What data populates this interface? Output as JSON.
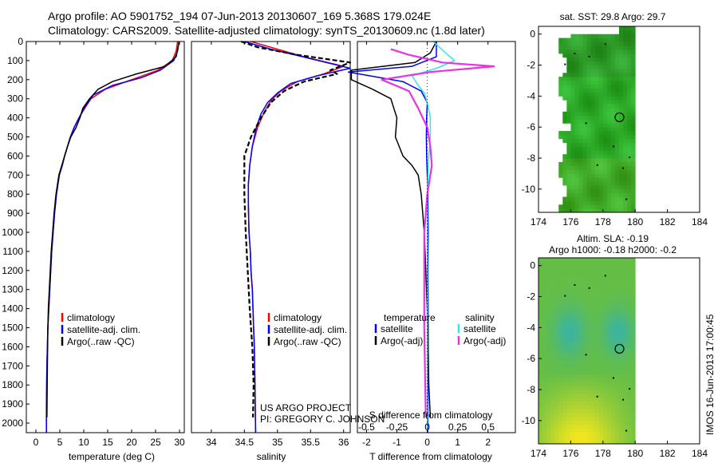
{
  "header": {
    "line1": "Argo profile: AO 5901752_194 07-Jun-2013 20130607_169 5.368S 179.024E",
    "line2": "Climatology: CARS2009. Satellite-adjusted climatology: synTS_20130609.nc (1.8d later)"
  },
  "colors": {
    "climatology": "#ff0000",
    "satellite": "#0000ff",
    "argo": "#000000",
    "sal_sat": "#33e5f0",
    "sal_argo": "#e533e5"
  },
  "chart_data": [
    {
      "type": "line",
      "id": "temperature",
      "xlabel": "temperature (deg C)",
      "ylabel": "",
      "xlim": [
        -2,
        31
      ],
      "ylim": [
        2050,
        0
      ],
      "xticks": [
        0,
        5,
        10,
        15,
        20,
        25,
        30
      ],
      "xtick_labels": [
        "0",
        "5",
        "10",
        "15",
        "20",
        "25",
        "30"
      ],
      "yticks": [
        0,
        100,
        200,
        300,
        400,
        500,
        600,
        700,
        800,
        900,
        1000,
        1100,
        1200,
        1300,
        1400,
        1500,
        1600,
        1700,
        1800,
        1900,
        2000
      ],
      "ytick_labels": [
        "0",
        "100",
        "200",
        "300",
        "400",
        "500",
        "600",
        "700",
        "800",
        "900",
        "1000",
        "1100",
        "1200",
        "1300",
        "1400",
        "1500",
        "1600",
        "1700",
        "1800",
        "1900",
        "2000"
      ],
      "legend": [
        "climatology",
        "satellite-adj. clim.",
        "Argo(..raw -QC)"
      ],
      "series": [
        {
          "name": "climatology",
          "color": "#ff0000",
          "width": 1.5,
          "x": [
            29.6,
            29.3,
            28.5,
            25.5,
            20,
            14.5,
            11.5,
            10.2,
            9,
            8,
            7.2,
            6.6,
            6,
            5.5,
            4.9,
            4.3,
            3.9,
            3.6,
            3.3,
            3.1,
            2.9,
            2.7,
            2.5,
            2.4,
            2.3,
            2.2,
            2.2
          ],
          "y": [
            0,
            50,
            100,
            150,
            200,
            250,
            300,
            350,
            400,
            450,
            500,
            550,
            600,
            650,
            700,
            800,
            900,
            1000,
            1100,
            1200,
            1300,
            1400,
            1500,
            1600,
            1700,
            1900,
            2050
          ]
        },
        {
          "name": "satellite-adj. clim.",
          "color": "#0000ff",
          "width": 1.5,
          "x": [
            29.9,
            29.6,
            28.8,
            26,
            22,
            16,
            12,
            10.3,
            9,
            8,
            7.2,
            6.6,
            6,
            5.5,
            4.9,
            4.3,
            3.9,
            3.6,
            3.3,
            3.1,
            2.9,
            2.7,
            2.5,
            2.4,
            2.3,
            2.2,
            2.2
          ],
          "y": [
            0,
            50,
            100,
            150,
            190,
            230,
            280,
            340,
            400,
            450,
            500,
            550,
            600,
            650,
            700,
            800,
            900,
            1000,
            1100,
            1200,
            1300,
            1400,
            1500,
            1600,
            1700,
            1900,
            2050
          ]
        },
        {
          "name": "Argo(..raw -QC)",
          "color": "#000000",
          "width": 1.5,
          "x": [
            29.9,
            29.7,
            29.3,
            27,
            21,
            16,
            13,
            11.2,
            9.8,
            9.2,
            8.4,
            7.3,
            6.6,
            6,
            5.4,
            4.8,
            4.2,
            3.8,
            3.5,
            3.2,
            3.0,
            2.8,
            2.6,
            2.5,
            2.4,
            2.3
          ],
          "y": [
            0,
            30,
            80,
            130,
            170,
            210,
            250,
            300,
            350,
            400,
            450,
            500,
            550,
            600,
            650,
            700,
            800,
            900,
            1000,
            1100,
            1200,
            1300,
            1400,
            1500,
            1700,
            1970
          ]
        }
      ]
    },
    {
      "type": "line",
      "id": "salinity",
      "xlabel": "salinity",
      "xlim": [
        33.7,
        36.1
      ],
      "ylim": [
        2050,
        0
      ],
      "xticks": [
        34,
        34.5,
        35,
        35.5,
        36
      ],
      "xtick_labels": [
        "34",
        "34.5",
        "35",
        "35.5",
        "36"
      ],
      "legend": [
        "climatology",
        "satellite-adj. clim.",
        "Argo(..raw -QC)"
      ],
      "series": [
        {
          "name": "climatology",
          "color": "#ff0000",
          "width": 1.5,
          "x": [
            34.6,
            35.0,
            35.4,
            36.0,
            35.7,
            35.3,
            35.05,
            34.9,
            34.8,
            34.7,
            34.62,
            34.58,
            34.56,
            34.56,
            34.57,
            34.59,
            34.6,
            34.62,
            34.63,
            34.64,
            34.65,
            34.66,
            34.67
          ],
          "y": [
            0,
            40,
            80,
            130,
            170,
            210,
            260,
            310,
            370,
            450,
            550,
            650,
            750,
            850,
            1000,
            1100,
            1200,
            1300,
            1400,
            1500,
            1600,
            1800,
            2050
          ]
        },
        {
          "name": "satellite-adj. clim.",
          "color": "#0000ff",
          "width": 1.5,
          "x": [
            34.5,
            34.9,
            35.5,
            36.1,
            35.6,
            35.2,
            35.0,
            34.85,
            34.75,
            34.68,
            34.62,
            34.58,
            34.56,
            34.56,
            34.57,
            34.59,
            34.6,
            34.62,
            34.63,
            34.64,
            34.65,
            34.66,
            34.67
          ],
          "y": [
            0,
            40,
            90,
            140,
            180,
            220,
            270,
            320,
            380,
            450,
            550,
            650,
            750,
            850,
            1000,
            1100,
            1200,
            1300,
            1400,
            1500,
            1600,
            1800,
            2050
          ]
        },
        {
          "name": "Argo(..raw -QC)",
          "color": "#000000",
          "width": 2.2,
          "dash": "6,3",
          "x": [
            34.45,
            34.7,
            35.3,
            36.1,
            35.8,
            35.9,
            35.4,
            35.1,
            34.9,
            34.75,
            34.6,
            34.5,
            34.5,
            34.5,
            34.52,
            34.55,
            34.58,
            34.6,
            34.62,
            34.63,
            34.64,
            34.63
          ],
          "y": [
            0,
            30,
            70,
            110,
            150,
            170,
            210,
            260,
            320,
            400,
            500,
            600,
            700,
            800,
            1000,
            1200,
            1400,
            1500,
            1600,
            1700,
            1800,
            1970
          ]
        }
      ]
    },
    {
      "type": "line",
      "id": "difference",
      "xlabel": "T difference from climatology",
      "xlabel_top": "S difference from climatology",
      "xlim": [
        -2.3,
        2.9
      ],
      "ylim": [
        2050,
        0
      ],
      "xticks": [
        -2,
        -1,
        0,
        1,
        2
      ],
      "xtick_labels": [
        "-2",
        "-1",
        "0",
        "1",
        "2"
      ],
      "top_ticks": [
        -0.5,
        -0.25,
        0,
        0.25,
        0.5
      ],
      "top_tick_labels": [
        "-0.5",
        "-0.25",
        "0",
        "0.25",
        "0.5"
      ],
      "legend_temperature": [
        "temperature",
        "satellite",
        "Argo(-adj)"
      ],
      "legend_salinity": [
        "salinity",
        "satellite",
        "Argo(-adj)"
      ],
      "series": [
        {
          "name": "temperature satellite",
          "color": "#0000ff",
          "width": 1.5,
          "x": [
            0.3,
            0.3,
            -0.5,
            -2.6,
            -0.8,
            -0.2,
            0,
            -0.02,
            -0.03,
            -0.02,
            0,
            0.02,
            0.03,
            0.02,
            0.03,
            0.02,
            0.02
          ],
          "y": [
            0,
            80,
            130,
            160,
            210,
            260,
            320,
            400,
            500,
            600,
            700,
            800,
            1000,
            1200,
            1500,
            1800,
            2050
          ]
        },
        {
          "name": "temperature Argo",
          "color": "#000000",
          "width": 1.5,
          "x": [
            0.3,
            0.1,
            -0.4,
            -2.5,
            -2.5,
            -1.8,
            -1.2,
            -1.1,
            -1.0,
            -1.05,
            -0.8,
            -0.5,
            -0.3,
            -0.2,
            -0.15,
            -0.1,
            -0.05,
            0.02,
            0.05,
            0.1
          ],
          "y": [
            0,
            60,
            110,
            150,
            200,
            250,
            300,
            350,
            400,
            500,
            600,
            650,
            700,
            800,
            900,
            1000,
            1200,
            1500,
            1800,
            1970
          ]
        },
        {
          "name": "salinity satellite",
          "color": "#33e5f0",
          "width": 1.5,
          "x": [
            0.2,
            0.6,
            0.9,
            0.3,
            -0.5,
            -0.3,
            -0.1,
            0.0,
            0.1,
            0.1,
            0.05,
            0.0,
            0.0,
            0.0,
            0.0
          ],
          "y": [
            0,
            60,
            100,
            140,
            180,
            230,
            270,
            320,
            400,
            500,
            600,
            800,
            1200,
            1600,
            2050
          ]
        },
        {
          "name": "salinity Argo",
          "color": "#e533e5",
          "width": 2.2,
          "x": [
            -1.2,
            -0.6,
            0.5,
            2.2,
            0.1,
            -1.5,
            -0.6,
            -0.3,
            0.0,
            0.1,
            0.15,
            0.0,
            -0.1,
            -0.1,
            -0.05
          ],
          "y": [
            40,
            70,
            110,
            130,
            160,
            200,
            260,
            350,
            450,
            550,
            650,
            800,
            1000,
            1500,
            1970
          ]
        }
      ]
    },
    {
      "type": "heatmap",
      "id": "sst_map",
      "title": "sat. SST: 29.8 Argo: 29.7",
      "xlim": [
        174,
        184
      ],
      "ylim": [
        -11.5,
        0.5
      ],
      "xticks": [
        174,
        176,
        178,
        180,
        182,
        184
      ],
      "xtick_labels": [
        "174",
        "176",
        "178",
        "180",
        "182",
        "184"
      ],
      "yticks": [
        0,
        -2,
        -4,
        -6,
        -8,
        -10
      ],
      "ytick_labels": [
        "0",
        "-2",
        "-4",
        "-6",
        "-8",
        "-10"
      ],
      "data_extent": {
        "lon": [
          175.0,
          180.0
        ],
        "lat": [
          -11.5,
          0.4
        ]
      },
      "marker": {
        "lon": 179.024,
        "lat": -5.368
      },
      "value_range": [
        29.0,
        30.5
      ]
    },
    {
      "type": "heatmap",
      "id": "sla_map",
      "title": "Altim. SLA: -0.19",
      "subtitle": "Argo h1000: -0.18 h2000: -0.2",
      "xlim": [
        174,
        184
      ],
      "ylim": [
        -11.5,
        0.5
      ],
      "xticks": [
        174,
        176,
        178,
        180,
        182,
        184
      ],
      "xtick_labels": [
        "174",
        "176",
        "178",
        "180",
        "182",
        "184"
      ],
      "yticks": [
        0,
        -2,
        -4,
        -6,
        -8,
        -10
      ],
      "ytick_labels": [
        "0",
        "-2",
        "-4",
        "-6",
        "-8",
        "-10"
      ],
      "data_extent": {
        "lon": [
          174.0,
          180.0
        ],
        "lat": [
          -11.5,
          0.5
        ]
      },
      "marker": {
        "lon": 179.024,
        "lat": -5.368
      }
    }
  ],
  "annotations": {
    "project": "US ARGO PROJECT",
    "pi": "PI: GREGORY C. JOHNSON",
    "timestamp": "IMOS 16-Jun-2013 17:00:45"
  }
}
